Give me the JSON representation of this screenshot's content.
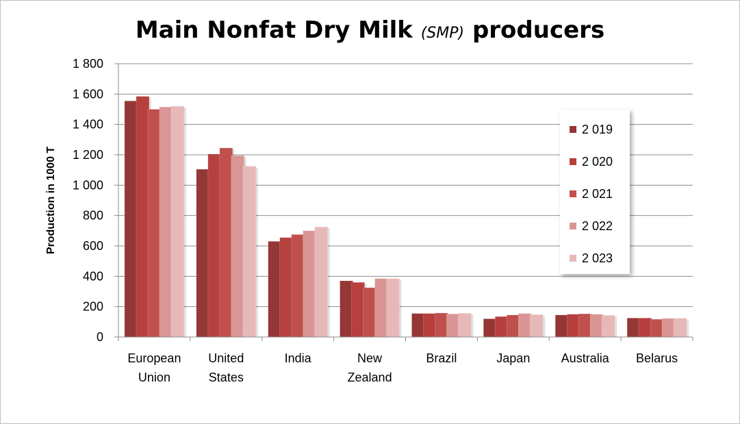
{
  "chart_data": {
    "type": "bar",
    "title_main": "Main Nonfat Dry Milk",
    "title_italic": "(SMP)",
    "title_end": "producers",
    "xlabel": "",
    "ylabel": "Production in 1000 T",
    "ylim": [
      0,
      1800
    ],
    "yticks": [
      {
        "value": 0,
        "label": "0"
      },
      {
        "value": 200,
        "label": "200"
      },
      {
        "value": 400,
        "label": "400"
      },
      {
        "value": 600,
        "label": "600"
      },
      {
        "value": 800,
        "label": "800"
      },
      {
        "value": 1000,
        "label": "1 000"
      },
      {
        "value": 1200,
        "label": "1 200"
      },
      {
        "value": 1400,
        "label": "1 400"
      },
      {
        "value": 1600,
        "label": "1 600"
      },
      {
        "value": 1800,
        "label": "1 800"
      }
    ],
    "grid": true,
    "legend_position": "right",
    "categories": [
      [
        "European",
        "Union"
      ],
      [
        "United",
        "States"
      ],
      [
        "India"
      ],
      [
        "New",
        "Zealand"
      ],
      [
        "Brazil"
      ],
      [
        "Japan"
      ],
      [
        "Australia"
      ],
      [
        "Belarus"
      ]
    ],
    "series": [
      {
        "name": "2 019",
        "color": "#953735",
        "values": [
          1555,
          1105,
          630,
          370,
          155,
          120,
          145,
          125
        ]
      },
      {
        "name": "2 020",
        "color": "#b6403e",
        "values": [
          1585,
          1205,
          655,
          360,
          155,
          135,
          150,
          125
        ]
      },
      {
        "name": "2 021",
        "color": "#c0504d",
        "values": [
          1500,
          1245,
          675,
          325,
          158,
          145,
          153,
          117
        ]
      },
      {
        "name": "2 022",
        "color": "#d99694",
        "values": [
          1515,
          1195,
          700,
          385,
          152,
          155,
          150,
          123
        ]
      },
      {
        "name": "2 023",
        "color": "#e6b9b8",
        "values": [
          1520,
          1125,
          725,
          385,
          157,
          148,
          143,
          124
        ]
      }
    ]
  }
}
